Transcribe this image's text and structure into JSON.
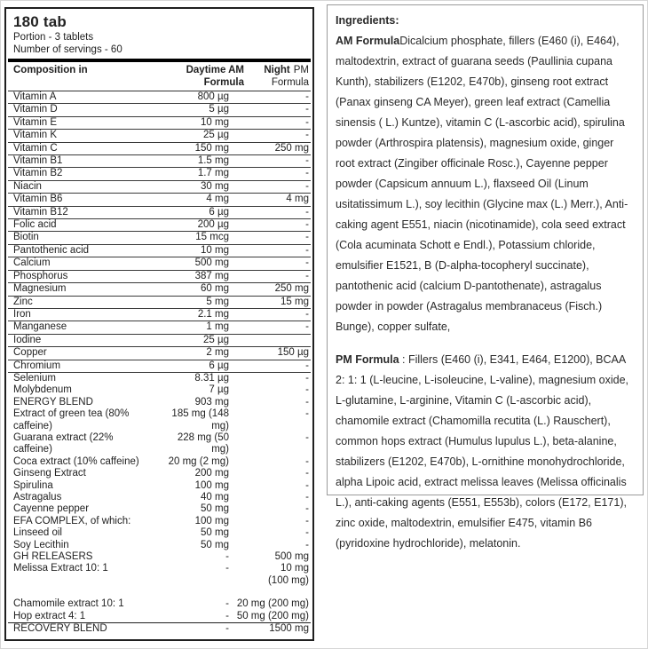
{
  "header": {
    "size": "180 tab",
    "portion": "Portion - 3 tablets",
    "servings": "Number of servings - 60"
  },
  "table": {
    "col_composition": "Composition in",
    "col_am": "Daytime AM\nFormula",
    "col_night_bold": "Night",
    "col_night_rest": "PM",
    "col_night_line2": "Formula",
    "rows": [
      {
        "name": "Vitamin A",
        "am": "800 µg",
        "pm": "-",
        "divider": true
      },
      {
        "name": "Vitamin D",
        "am": "5 µg",
        "pm": "-",
        "divider": true
      },
      {
        "name": "Vitamin E",
        "am": "10 mg",
        "pm": "-",
        "divider": true
      },
      {
        "name": "Vitamin K",
        "am": "25 µg",
        "pm": "-",
        "divider": true
      },
      {
        "name": "Vitamin C",
        "am": "150 mg",
        "pm": "250 mg",
        "divider": true
      },
      {
        "name": "Vitamin B1",
        "am": "1.5 mg",
        "pm": "-",
        "divider": true
      },
      {
        "name": "Vitamin B2",
        "am": "1.7 mg",
        "pm": "-",
        "divider": true
      },
      {
        "name": "Niacin",
        "am": "30 mg",
        "pm": "-",
        "divider": true
      },
      {
        "name": "Vitamin B6",
        "am": "4 mg",
        "pm": "4 mg",
        "divider": true
      },
      {
        "name": "Vitamin B12",
        "am": "6 µg",
        "pm": "-",
        "divider": true
      },
      {
        "name": "Folic acid",
        "am": "200 µg",
        "pm": "-",
        "divider": true
      },
      {
        "name": "Biotin",
        "am": "15 mcg",
        "pm": "-",
        "divider": true
      },
      {
        "name": "Pantothenic acid",
        "am": "10 mg",
        "pm": "-",
        "divider": true
      },
      {
        "name": "Calcium",
        "am": "500 mg",
        "pm": "-",
        "divider": true
      },
      {
        "name": "Phosphorus",
        "am": "387 mg",
        "pm": "-",
        "divider": true
      },
      {
        "name": "Magnesium",
        "am": "60 mg",
        "pm": "250 mg",
        "divider": true
      },
      {
        "name": "Zinc",
        "am": "5 mg",
        "pm": "15 mg",
        "divider": true
      },
      {
        "name": "Iron",
        "am": "2.1 mg",
        "pm": "-",
        "divider": true
      },
      {
        "name": "Manganese",
        "am": "1 mg",
        "pm": "-",
        "divider": true
      },
      {
        "name": "Iodine",
        "am": "25 µg",
        "pm": "",
        "divider": true
      },
      {
        "name": "Copper",
        "am": "2 mg",
        "pm": "150 µg",
        "divider": true
      },
      {
        "name": "Chromium",
        "am": "6 µg",
        "pm": "-",
        "divider": true
      },
      {
        "name": "Selenium",
        "am": "8.31 µg",
        "pm": "-",
        "divider": false
      },
      {
        "name": "Molybdenum",
        "am": "7 µg",
        "pm": "-",
        "divider": false
      },
      {
        "name": "ENERGY BLEND",
        "am": "903 mg",
        "pm": "-",
        "divider": false
      },
      {
        "name": "Extract of green tea (80%\ncaffeine)",
        "am": "185 mg (148\nmg)",
        "pm": "-",
        "divider": false
      },
      {
        "name": "Guarana extract (22%\ncaffeine)",
        "am": "228 mg (50\nmg)",
        "pm": "-",
        "divider": false
      },
      {
        "name": "Coca extract (10% caffeine)",
        "am": "20 mg (2 mg)",
        "pm": "-",
        "divider": false
      },
      {
        "name": "Ginseng Extract",
        "am": "200 mg",
        "pm": "-",
        "divider": false
      },
      {
        "name": "Spirulina",
        "am": "100 mg",
        "pm": "-",
        "divider": false
      },
      {
        "name": "Astragalus",
        "am": "40 mg",
        "pm": "-",
        "divider": false
      },
      {
        "name": "Cayenne pepper",
        "am": "50 mg",
        "pm": "-",
        "divider": false
      },
      {
        "name": "EFA COMPLEX, of which:",
        "am": "100 mg",
        "pm": "-",
        "divider": false
      },
      {
        "name": "Linseed oil",
        "am": "50 mg",
        "pm": "-",
        "divider": false
      },
      {
        "name": "Soy Lecithin",
        "am": "50 mg",
        "pm": "-",
        "divider": false
      },
      {
        "name": "GH RELEASERS",
        "am": "-",
        "pm": "500 mg",
        "divider": false
      },
      {
        "name": "Melissa Extract 10: 1",
        "am": "-",
        "pm": "10 mg\n(100 mg)",
        "divider": false,
        "gap": true
      },
      {
        "name": "Chamomile extract 10: 1",
        "am": "-",
        "pm": "20 mg (200 mg)",
        "divider": false
      },
      {
        "name": "Hop extract 4: 1",
        "am": "-",
        "pm": "50 mg (200 mg)",
        "divider": false
      },
      {
        "name": "RECOVERY BLEND",
        "am": "-",
        "pm": "1500 mg",
        "divider": false,
        "total": true
      }
    ]
  },
  "ingredients": {
    "title": "Ingredients:",
    "am_label": "AM Formula",
    "am_text": "Dicalcium phosphate, fillers (E460 (i), E464), maltodextrin, extract of guarana seeds (Paullinia cupana Kunth), stabilizers (E1202, E470b), ginseng root extract (Panax ginseng CA Meyer), green leaf extract (Camellia sinensis ( L.) Kuntze), vitamin C (L-ascorbic acid), spirulina powder (Arthrospira platensis), magnesium oxide, ginger root extract (Zingiber officinale Rosc.), Cayenne pepper powder (Capsicum annuum L.), flaxseed Oil (Linum usitatissimum L.), soy lecithin (Glycine max (L.) Merr.), Anti-caking agent E551, niacin (nicotinamide), cola seed extract (Cola acuminata Schott e Endl.), Potassium chloride, emulsifier E1521, B (D-alpha-tocopheryl succinate), pantothenic acid (calcium D-pantothenate), astragalus powder in powder (Astragalus membranaceus (Fisch.) Bunge), copper sulfate,",
    "pm_label": "PM Formula",
    "pm_text": " : Fillers (E460 (i), E341, E464, E1200), BCAA 2: 1: 1 (L-leucine, L-isoleucine, L-valine), magnesium oxide, L-glutamine, L-arginine, Vitamin C (L-ascorbic acid), chamomile extract (Chamomilla recutita (L.) Rauschert), common hops extract (Humulus lupulus L.), beta-alanine, stabilizers (E1202, E470b), L-ornithine monohydrochloride, alpha Lipoic acid, extract melissa leaves (Melissa officinalis L.), anti-caking agents (E551, E553b), colors (E172, E171), zinc oxide, maltodextrin, emulsifier E475, vitamin B6 (pyridoxine hydrochloride), melatonin."
  },
  "colors": {
    "text": "#222222",
    "border_dark": "#1f1f1f",
    "border_light": "#9a9a9a",
    "header_bar": "#000000"
  }
}
